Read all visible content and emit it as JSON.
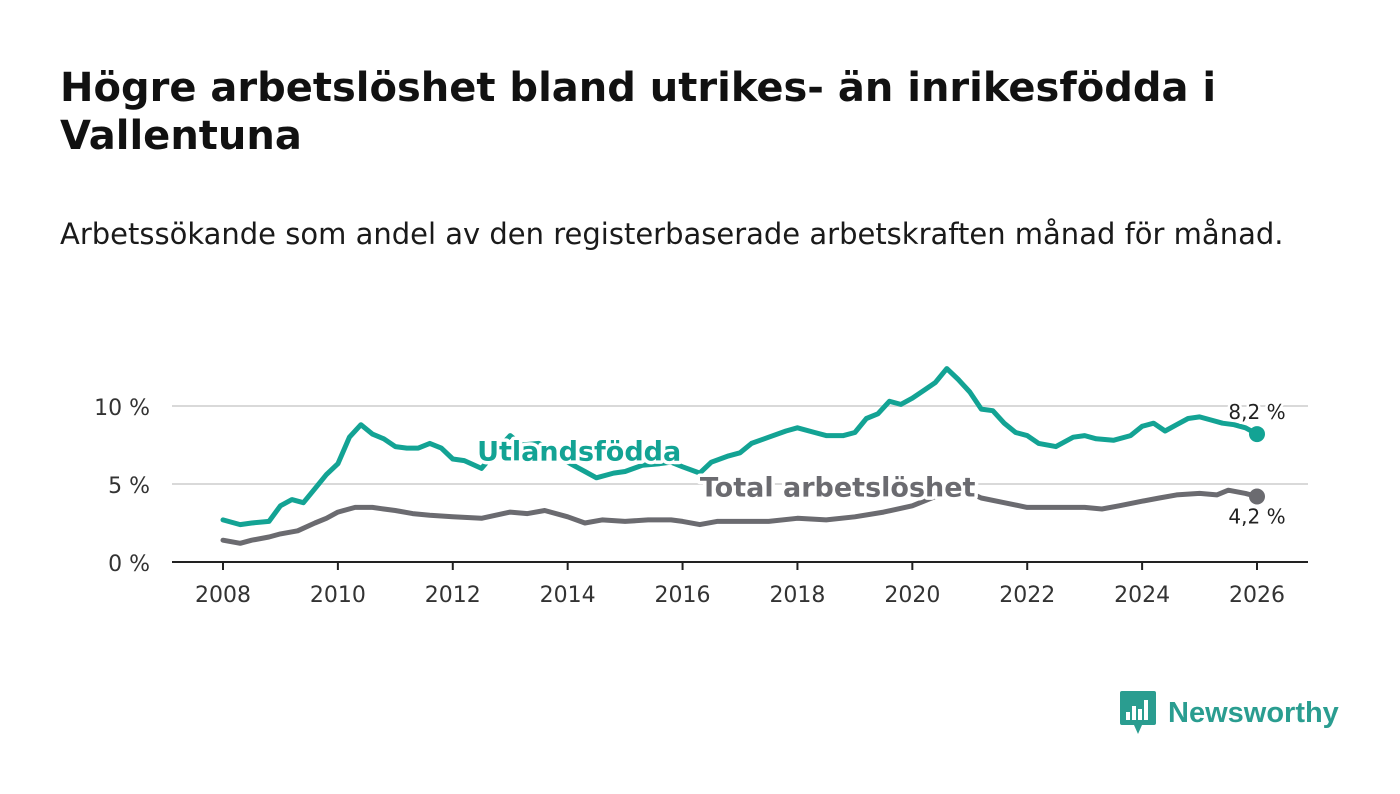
{
  "title": "Högre arbetslöshet bland utrikes- än inrikesfödda i Vallentuna",
  "subtitle": "Arbetssökande som andel av den registerbaserade arbetskraften månad för månad.",
  "brand": {
    "name": "Newsworthy",
    "color": "#2a9d90"
  },
  "chart_data": {
    "type": "line",
    "title": "Högre arbetslöshet bland utrikes- än inrikesfödda i Vallentuna",
    "xlabel": "",
    "ylabel": "",
    "xlim": [
      2007.5,
      2026.9
    ],
    "ylim": [
      0,
      13
    ],
    "x_ticks": [
      2008,
      2010,
      2012,
      2014,
      2016,
      2018,
      2020,
      2022,
      2024,
      2026
    ],
    "x_tick_labels": [
      "2008",
      "2010",
      "2012",
      "2014",
      "2016",
      "2018",
      "2020",
      "2022",
      "2024",
      "2026"
    ],
    "y_ticks": [
      0,
      5,
      10
    ],
    "y_tick_labels": [
      "0 %",
      "5 %",
      "10 %"
    ],
    "grid": true,
    "series": [
      {
        "name": "Utlandsfödda",
        "color": "#13a394",
        "end_label": "8,2 %",
        "points": [
          [
            2008.0,
            2.7
          ],
          [
            2008.3,
            2.4
          ],
          [
            2008.5,
            2.5
          ],
          [
            2008.8,
            2.6
          ],
          [
            2009.0,
            3.6
          ],
          [
            2009.2,
            4.0
          ],
          [
            2009.4,
            3.8
          ],
          [
            2009.6,
            4.7
          ],
          [
            2009.8,
            5.6
          ],
          [
            2010.0,
            6.3
          ],
          [
            2010.2,
            8.0
          ],
          [
            2010.4,
            8.8
          ],
          [
            2010.6,
            8.2
          ],
          [
            2010.8,
            7.9
          ],
          [
            2011.0,
            7.4
          ],
          [
            2011.2,
            7.3
          ],
          [
            2011.4,
            7.3
          ],
          [
            2011.6,
            7.6
          ],
          [
            2011.8,
            7.3
          ],
          [
            2012.0,
            6.6
          ],
          [
            2012.2,
            6.5
          ],
          [
            2012.5,
            6.0
          ],
          [
            2012.8,
            7.3
          ],
          [
            2013.0,
            8.1
          ],
          [
            2013.2,
            7.5
          ],
          [
            2013.5,
            7.6
          ],
          [
            2013.8,
            7.0
          ],
          [
            2014.0,
            6.4
          ],
          [
            2014.3,
            5.8
          ],
          [
            2014.5,
            5.4
          ],
          [
            2014.8,
            5.7
          ],
          [
            2015.0,
            5.8
          ],
          [
            2015.3,
            6.2
          ],
          [
            2015.6,
            6.3
          ],
          [
            2015.8,
            6.4
          ],
          [
            2016.0,
            6.1
          ],
          [
            2016.3,
            5.7
          ],
          [
            2016.5,
            6.4
          ],
          [
            2016.8,
            6.8
          ],
          [
            2017.0,
            7.0
          ],
          [
            2017.2,
            7.6
          ],
          [
            2017.5,
            8.0
          ],
          [
            2017.8,
            8.4
          ],
          [
            2018.0,
            8.6
          ],
          [
            2018.3,
            8.3
          ],
          [
            2018.5,
            8.1
          ],
          [
            2018.8,
            8.1
          ],
          [
            2019.0,
            8.3
          ],
          [
            2019.2,
            9.2
          ],
          [
            2019.4,
            9.5
          ],
          [
            2019.6,
            10.3
          ],
          [
            2019.8,
            10.1
          ],
          [
            2020.0,
            10.5
          ],
          [
            2020.2,
            11.0
          ],
          [
            2020.4,
            11.5
          ],
          [
            2020.6,
            12.4
          ],
          [
            2020.8,
            11.7
          ],
          [
            2021.0,
            10.9
          ],
          [
            2021.2,
            9.8
          ],
          [
            2021.4,
            9.7
          ],
          [
            2021.6,
            8.9
          ],
          [
            2021.8,
            8.3
          ],
          [
            2022.0,
            8.1
          ],
          [
            2022.2,
            7.6
          ],
          [
            2022.5,
            7.4
          ],
          [
            2022.8,
            8.0
          ],
          [
            2023.0,
            8.1
          ],
          [
            2023.2,
            7.9
          ],
          [
            2023.5,
            7.8
          ],
          [
            2023.8,
            8.1
          ],
          [
            2024.0,
            8.7
          ],
          [
            2024.2,
            8.9
          ],
          [
            2024.4,
            8.4
          ],
          [
            2024.6,
            8.8
          ],
          [
            2024.8,
            9.2
          ],
          [
            2025.0,
            9.3
          ],
          [
            2025.2,
            9.1
          ],
          [
            2025.4,
            8.9
          ],
          [
            2025.6,
            8.8
          ],
          [
            2025.8,
            8.6
          ],
          [
            2026.0,
            8.2
          ]
        ]
      },
      {
        "name": "Total arbetslöshet",
        "color": "#6b6b70",
        "end_label": "4,2 %",
        "points": [
          [
            2008.0,
            1.4
          ],
          [
            2008.3,
            1.2
          ],
          [
            2008.5,
            1.4
          ],
          [
            2008.8,
            1.6
          ],
          [
            2009.0,
            1.8
          ],
          [
            2009.3,
            2.0
          ],
          [
            2009.6,
            2.5
          ],
          [
            2009.8,
            2.8
          ],
          [
            2010.0,
            3.2
          ],
          [
            2010.3,
            3.5
          ],
          [
            2010.6,
            3.5
          ],
          [
            2010.8,
            3.4
          ],
          [
            2011.0,
            3.3
          ],
          [
            2011.3,
            3.1
          ],
          [
            2011.6,
            3.0
          ],
          [
            2012.0,
            2.9
          ],
          [
            2012.5,
            2.8
          ],
          [
            2013.0,
            3.2
          ],
          [
            2013.3,
            3.1
          ],
          [
            2013.6,
            3.3
          ],
          [
            2014.0,
            2.9
          ],
          [
            2014.3,
            2.5
          ],
          [
            2014.6,
            2.7
          ],
          [
            2015.0,
            2.6
          ],
          [
            2015.4,
            2.7
          ],
          [
            2015.8,
            2.7
          ],
          [
            2016.0,
            2.6
          ],
          [
            2016.3,
            2.4
          ],
          [
            2016.6,
            2.6
          ],
          [
            2017.0,
            2.6
          ],
          [
            2017.5,
            2.6
          ],
          [
            2018.0,
            2.8
          ],
          [
            2018.5,
            2.7
          ],
          [
            2019.0,
            2.9
          ],
          [
            2019.5,
            3.2
          ],
          [
            2020.0,
            3.6
          ],
          [
            2020.4,
            4.2
          ],
          [
            2020.6,
            4.9
          ],
          [
            2020.9,
            4.6
          ],
          [
            2021.2,
            4.1
          ],
          [
            2021.6,
            3.8
          ],
          [
            2022.0,
            3.5
          ],
          [
            2022.5,
            3.5
          ],
          [
            2023.0,
            3.5
          ],
          [
            2023.3,
            3.4
          ],
          [
            2023.6,
            3.6
          ],
          [
            2024.0,
            3.9
          ],
          [
            2024.3,
            4.1
          ],
          [
            2024.6,
            4.3
          ],
          [
            2025.0,
            4.4
          ],
          [
            2025.3,
            4.3
          ],
          [
            2025.5,
            4.6
          ],
          [
            2025.8,
            4.4
          ],
          [
            2026.0,
            4.2
          ]
        ]
      }
    ],
    "annotations": [
      {
        "text": "Utlandsfödda",
        "series": "Utlandsfödda",
        "x": 2014.2,
        "y": 6.5
      },
      {
        "text": "Total arbetslöshet",
        "series": "Total arbetslöshet",
        "x": 2018.7,
        "y": 4.2
      }
    ]
  }
}
